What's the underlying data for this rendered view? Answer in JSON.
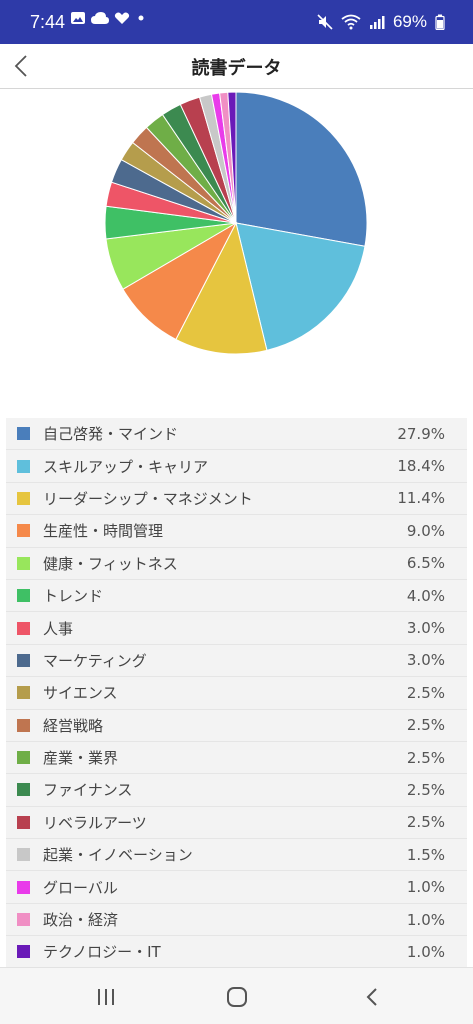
{
  "status_bar": {
    "time": "7:44",
    "battery": "69%"
  },
  "header": {
    "title": "読書データ"
  },
  "colors": {
    "status_bar_bg": "#2e3aa8"
  },
  "chart_data": {
    "type": "pie",
    "title": "",
    "categories": [
      "自己啓発・マインド",
      "スキルアップ・キャリア",
      "リーダーシップ・マネジメント",
      "生産性・時間管理",
      "健康・フィットネス",
      "トレンド",
      "人事",
      "マーケティング",
      "サイエンス",
      "経営戦略",
      "産業・業界",
      "ファイナンス",
      "リベラルアーツ",
      "起業・イノベーション",
      "グローバル",
      "政治・経済",
      "テクノロジー・IT"
    ],
    "values": [
      27.9,
      18.4,
      11.4,
      9.0,
      6.5,
      4.0,
      3.0,
      3.0,
      2.5,
      2.5,
      2.5,
      2.5,
      2.5,
      1.5,
      1.0,
      1.0,
      1.0
    ],
    "value_labels": [
      "27.9%",
      "18.4%",
      "11.4%",
      "9.0%",
      "6.5%",
      "4.0%",
      "3.0%",
      "3.0%",
      "2.5%",
      "2.5%",
      "2.5%",
      "2.5%",
      "2.5%",
      "1.5%",
      "1.0%",
      "1.0%",
      "1.0%"
    ],
    "colors": [
      "#4a7ebb",
      "#5fbfdc",
      "#e6c53f",
      "#f5894a",
      "#98e65c",
      "#3fc065",
      "#ee5567",
      "#4d6a8e",
      "#b59d4c",
      "#bf7550",
      "#6fae47",
      "#3c8a50",
      "#b8404f",
      "#c8c8c8",
      "#e93bea",
      "#f08fc4",
      "#6a1ab8"
    ],
    "legend_position": "bottom"
  }
}
